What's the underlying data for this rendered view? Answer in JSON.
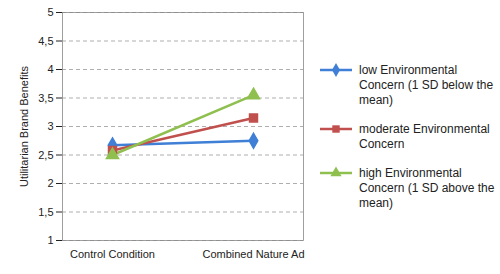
{
  "chart_data": {
    "type": "line",
    "y_label": "Utilitarian Brand Benefits",
    "categories": [
      "Control Condition",
      "Combined Nature Ad"
    ],
    "series": [
      {
        "name": "low Environmental Concern (1 SD below the mean)",
        "color": "#3f7fd6",
        "marker": "diamond",
        "values": [
          2.67,
          2.75
        ]
      },
      {
        "name": "moderate Environmental Concern",
        "color": "#c0504d",
        "marker": "square",
        "values": [
          2.58,
          3.15
        ]
      },
      {
        "name": "high Environmental Concern (1 SD above the mean)",
        "color": "#8fc04f",
        "marker": "triangle",
        "values": [
          2.5,
          3.55
        ]
      }
    ],
    "ylim": [
      1,
      5
    ],
    "yticks": [
      1,
      {
        "value": 1.5,
        "label": "1,5"
      },
      2,
      {
        "value": 2.5,
        "label": "2,5"
      },
      3,
      {
        "value": 3.5,
        "label": "3,5"
      },
      4,
      {
        "value": 4.5,
        "label": "4,5"
      },
      5
    ],
    "grid": true,
    "legend": "right"
  }
}
